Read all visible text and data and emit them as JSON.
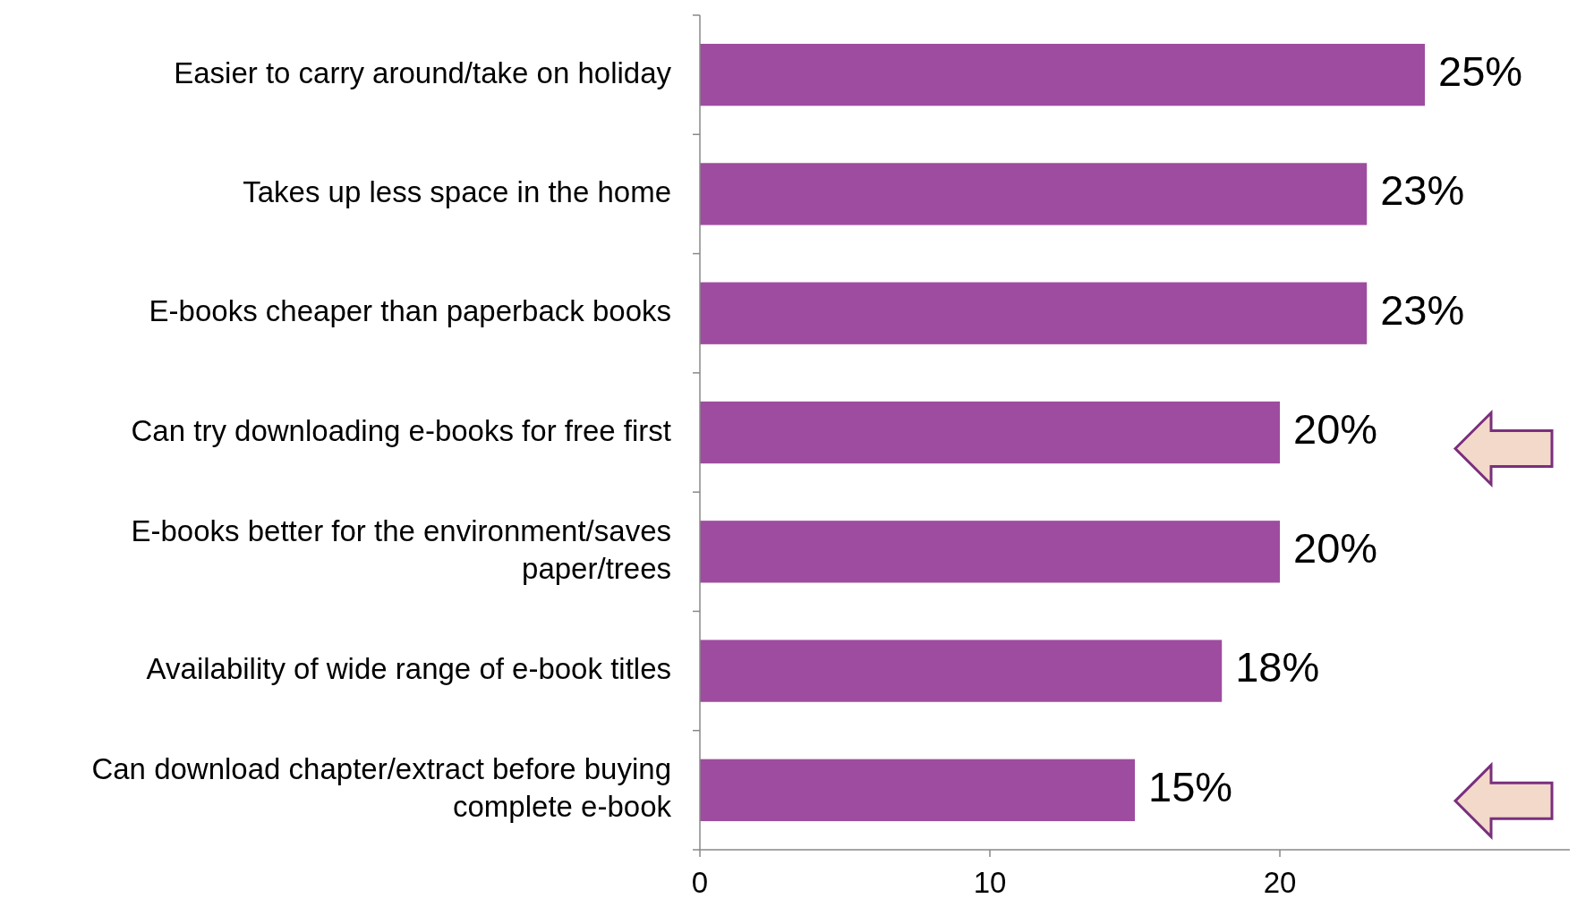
{
  "chart_data": {
    "type": "bar",
    "orientation": "horizontal",
    "categories": [
      "Easier to carry around/take on holiday",
      "Takes up less space in the home",
      "E-books cheaper than paperback books",
      "Can try downloading e-books for free first",
      "E-books better for the environment/saves paper/trees",
      "Availability of wide range of e-book titles",
      "Can download chapter/extract before buying complete e-book"
    ],
    "values": [
      25,
      23,
      23,
      20,
      20,
      18,
      15
    ],
    "value_labels": [
      "25%",
      "23%",
      "23%",
      "20%",
      "20%",
      "18%",
      "15%"
    ],
    "color": "#9e4c9f",
    "xlim": [
      0,
      30
    ],
    "xticks": [
      0,
      10,
      20
    ],
    "grid": false
  }
}
